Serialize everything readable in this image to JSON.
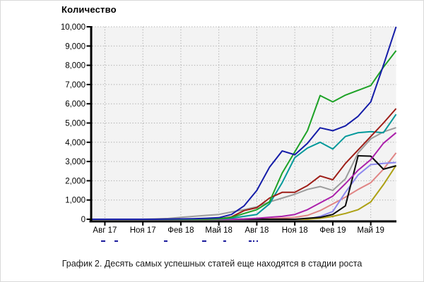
{
  "chart_data": {
    "type": "line",
    "title": "Количество",
    "caption": "График 2. Десять самых успешных статей еще находятся в стадии роста",
    "xlabel": "",
    "ylabel": "",
    "ylim": [
      0,
      10000
    ],
    "y_tick_labels": [
      "0",
      "1,000",
      "2,000",
      "3,000",
      "4,000",
      "5,000",
      "6,000",
      "7,000",
      "8,000",
      "9,000",
      "10,000"
    ],
    "x_tick_labels": [
      "Авг 17",
      "Ноя 17",
      "Фев 18",
      "Май 18",
      "Авг 18",
      "Ноя 18",
      "Фев 19",
      "Май 19"
    ],
    "x_tick_indices": [
      1,
      4,
      7,
      10,
      13,
      16,
      19,
      22
    ],
    "x_points": 25,
    "grid": "dotted",
    "legend_position": "cropped-below-axis",
    "plot_background": "#f3f3f3",
    "grid_color": "#a6a6a6",
    "axis_color": "#000000",
    "series": [
      {
        "name": "gray-line",
        "color": "#9c9c9c",
        "values": [
          0,
          0,
          0,
          0,
          0,
          20,
          40,
          100,
          150,
          200,
          250,
          380,
          500,
          650,
          900,
          1100,
          1300,
          1550,
          1700,
          1500,
          2100,
          3450,
          4180,
          4540,
          4760
        ]
      },
      {
        "name": "salmon-line",
        "color": "#e08484",
        "values": [
          0,
          0,
          0,
          0,
          0,
          0,
          0,
          0,
          0,
          0,
          0,
          0,
          0,
          0,
          30,
          60,
          100,
          200,
          450,
          800,
          1150,
          1550,
          1900,
          2600,
          3450
        ]
      },
      {
        "name": "periwinkle-line",
        "color": "#8c87ee",
        "values": [
          0,
          0,
          0,
          0,
          0,
          0,
          0,
          0,
          0,
          0,
          0,
          0,
          0,
          0,
          0,
          0,
          0,
          0,
          150,
          400,
          1400,
          2300,
          2840,
          2900,
          2950
        ]
      },
      {
        "name": "olive-line",
        "color": "#ada114",
        "values": [
          0,
          0,
          0,
          0,
          0,
          0,
          0,
          0,
          0,
          0,
          0,
          0,
          0,
          0,
          0,
          0,
          0,
          0,
          50,
          150,
          300,
          500,
          900,
          1800,
          2800
        ]
      },
      {
        "name": "black-line",
        "color": "#0a0a0a",
        "values": [
          0,
          0,
          0,
          0,
          0,
          0,
          0,
          0,
          0,
          0,
          0,
          0,
          0,
          0,
          0,
          0,
          0,
          50,
          100,
          250,
          700,
          3300,
          3280,
          2600,
          2780
        ]
      },
      {
        "name": "magenta-line",
        "color": "#ab20ab",
        "values": [
          0,
          0,
          0,
          0,
          0,
          0,
          0,
          0,
          0,
          0,
          0,
          0,
          20,
          50,
          100,
          150,
          250,
          500,
          850,
          1200,
          1850,
          2550,
          3100,
          3950,
          4500
        ]
      },
      {
        "name": "teal-line",
        "color": "#00989a",
        "values": [
          0,
          0,
          0,
          0,
          0,
          0,
          0,
          0,
          0,
          0,
          20,
          60,
          150,
          250,
          800,
          1900,
          3200,
          3700,
          4000,
          3650,
          4300,
          4500,
          4550,
          4500,
          5450
        ]
      },
      {
        "name": "darkred-line",
        "color": "#9e1d17",
        "values": [
          0,
          0,
          0,
          0,
          0,
          0,
          0,
          0,
          0,
          0,
          30,
          120,
          450,
          600,
          1100,
          1400,
          1400,
          1750,
          2250,
          2050,
          2900,
          3600,
          4300,
          5000,
          5750
        ]
      },
      {
        "name": "green-line",
        "color": "#1da226",
        "values": [
          0,
          0,
          0,
          0,
          0,
          0,
          0,
          0,
          0,
          10,
          30,
          100,
          300,
          500,
          900,
          2400,
          3500,
          4600,
          6430,
          6100,
          6450,
          6700,
          6950,
          7900,
          8760
        ]
      },
      {
        "name": "navy-line",
        "color": "#141ca8",
        "values": [
          0,
          0,
          0,
          0,
          0,
          0,
          10,
          20,
          30,
          50,
          80,
          250,
          700,
          1500,
          2700,
          3550,
          3350,
          3950,
          4750,
          4600,
          4850,
          5350,
          6100,
          8000,
          10000
        ]
      }
    ]
  },
  "legend_cropped_marks": {
    "color": "#1a1a9c",
    "marks": [
      {
        "x": 143,
        "w": 6
      },
      {
        "x": 162,
        "w": 5
      },
      {
        "x": 232,
        "w": 5
      },
      {
        "x": 286,
        "w": 6
      },
      {
        "x": 316,
        "w": 4
      },
      {
        "x": 352,
        "w": 4
      },
      {
        "x": 358,
        "w": 2
      },
      {
        "x": 363,
        "w": 2
      }
    ]
  }
}
